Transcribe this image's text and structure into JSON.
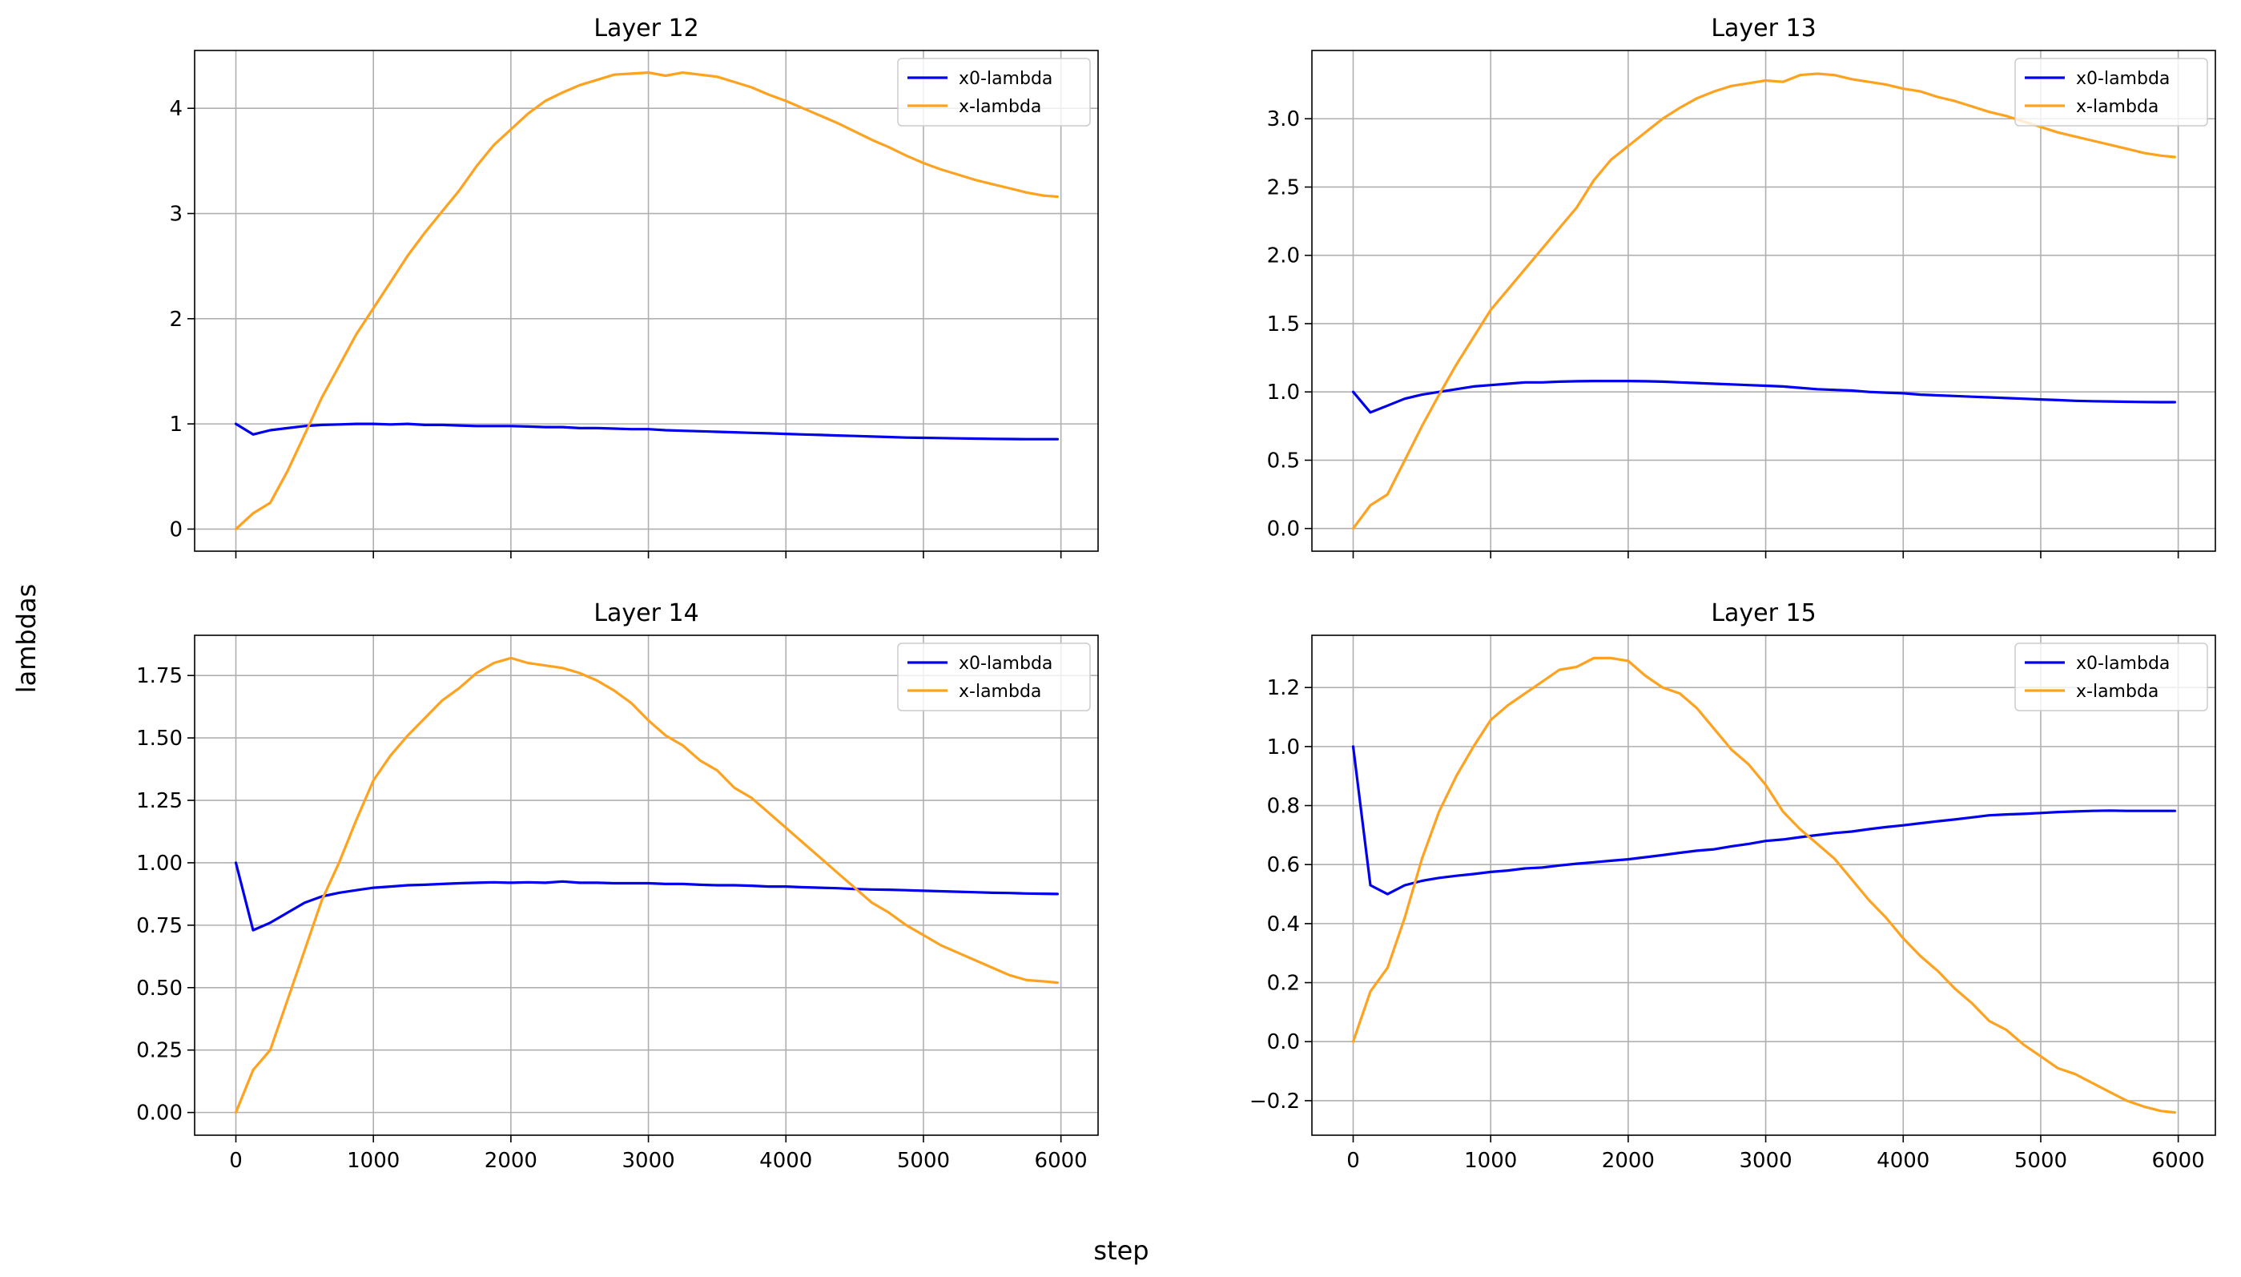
{
  "figure": {
    "xlabel": "step",
    "ylabel": "lambdas"
  },
  "colors": {
    "x0_lambda": "#0000ee",
    "x_lambda": "#ffa21f"
  },
  "chart_data": [
    {
      "type": "line",
      "title": "Layer 12",
      "xlabel": "",
      "ylabel": "",
      "xlim": [
        -300,
        6270
      ],
      "ylim": [
        -0.21,
        4.55
      ],
      "xticks": [
        0,
        1000,
        2000,
        3000,
        4000,
        5000,
        6000
      ],
      "yticks": [
        0,
        1,
        2,
        3,
        4
      ],
      "yticklabels": [
        "0",
        "1",
        "2",
        "3",
        "4"
      ],
      "show_xticklabels": false,
      "grid": true,
      "legend": "top-right",
      "series": [
        {
          "name": "x0-lambda",
          "color": "#0000ee",
          "x": [
            0,
            125,
            250,
            375,
            500,
            625,
            750,
            875,
            1000,
            1125,
            1250,
            1375,
            1500,
            1625,
            1750,
            1875,
            2000,
            2125,
            2250,
            2375,
            2500,
            2625,
            2750,
            2875,
            3000,
            3125,
            3250,
            3375,
            3500,
            3625,
            3750,
            3875,
            4000,
            4125,
            4250,
            4375,
            4500,
            4625,
            4750,
            4875,
            5000,
            5125,
            5250,
            5375,
            5500,
            5625,
            5750,
            5875,
            5975
          ],
          "y": [
            1.0,
            0.9,
            0.94,
            0.96,
            0.98,
            0.99,
            0.995,
            1.0,
            1.0,
            0.995,
            1.0,
            0.99,
            0.99,
            0.985,
            0.98,
            0.98,
            0.98,
            0.975,
            0.97,
            0.97,
            0.96,
            0.96,
            0.955,
            0.95,
            0.95,
            0.94,
            0.935,
            0.93,
            0.925,
            0.92,
            0.915,
            0.91,
            0.905,
            0.9,
            0.895,
            0.89,
            0.885,
            0.88,
            0.875,
            0.87,
            0.868,
            0.865,
            0.862,
            0.86,
            0.858,
            0.856,
            0.855,
            0.855,
            0.855
          ]
        },
        {
          "name": "x-lambda",
          "color": "#ffa21f",
          "x": [
            0,
            125,
            250,
            375,
            500,
            625,
            750,
            875,
            1000,
            1125,
            1250,
            1375,
            1500,
            1625,
            1750,
            1875,
            2000,
            2125,
            2250,
            2375,
            2500,
            2625,
            2750,
            2875,
            3000,
            3125,
            3250,
            3375,
            3500,
            3625,
            3750,
            3875,
            4000,
            4125,
            4250,
            4375,
            4500,
            4625,
            4750,
            4875,
            5000,
            5125,
            5250,
            5375,
            5500,
            5625,
            5750,
            5875,
            5975
          ],
          "y": [
            0.0,
            0.15,
            0.25,
            0.55,
            0.9,
            1.25,
            1.55,
            1.85,
            2.1,
            2.35,
            2.6,
            2.82,
            3.02,
            3.22,
            3.45,
            3.65,
            3.8,
            3.95,
            4.07,
            4.15,
            4.22,
            4.27,
            4.32,
            4.33,
            4.34,
            4.31,
            4.34,
            4.32,
            4.3,
            4.25,
            4.2,
            4.13,
            4.07,
            4.0,
            3.93,
            3.86,
            3.78,
            3.7,
            3.63,
            3.55,
            3.48,
            3.42,
            3.37,
            3.32,
            3.28,
            3.24,
            3.2,
            3.17,
            3.16
          ]
        }
      ]
    },
    {
      "type": "line",
      "title": "Layer 13",
      "xlabel": "",
      "ylabel": "",
      "xlim": [
        -300,
        6270
      ],
      "ylim": [
        -0.166,
        3.5
      ],
      "xticks": [
        0,
        1000,
        2000,
        3000,
        4000,
        5000,
        6000
      ],
      "yticks": [
        0.0,
        0.5,
        1.0,
        1.5,
        2.0,
        2.5,
        3.0
      ],
      "yticklabels": [
        "0.0",
        "0.5",
        "1.0",
        "1.5",
        "2.0",
        "2.5",
        "3.0"
      ],
      "show_xticklabels": false,
      "grid": true,
      "legend": "top-right",
      "series": [
        {
          "name": "x0-lambda",
          "color": "#0000ee",
          "x": [
            0,
            125,
            250,
            375,
            500,
            625,
            750,
            875,
            1000,
            1125,
            1250,
            1375,
            1500,
            1625,
            1750,
            1875,
            2000,
            2125,
            2250,
            2375,
            2500,
            2625,
            2750,
            2875,
            3000,
            3125,
            3250,
            3375,
            3500,
            3625,
            3750,
            3875,
            4000,
            4125,
            4250,
            4375,
            4500,
            4625,
            4750,
            4875,
            5000,
            5125,
            5250,
            5375,
            5500,
            5625,
            5750,
            5875,
            5975
          ],
          "y": [
            1.0,
            0.85,
            0.9,
            0.95,
            0.98,
            1.0,
            1.02,
            1.04,
            1.05,
            1.06,
            1.07,
            1.07,
            1.075,
            1.078,
            1.08,
            1.08,
            1.08,
            1.078,
            1.075,
            1.07,
            1.065,
            1.06,
            1.055,
            1.05,
            1.045,
            1.04,
            1.03,
            1.02,
            1.015,
            1.01,
            1.0,
            0.995,
            0.99,
            0.98,
            0.975,
            0.97,
            0.965,
            0.96,
            0.955,
            0.95,
            0.945,
            0.94,
            0.935,
            0.932,
            0.93,
            0.928,
            0.926,
            0.925,
            0.925
          ]
        },
        {
          "name": "x-lambda",
          "color": "#ffa21f",
          "x": [
            0,
            125,
            250,
            375,
            500,
            625,
            750,
            875,
            1000,
            1125,
            1250,
            1375,
            1500,
            1625,
            1750,
            1875,
            2000,
            2125,
            2250,
            2375,
            2500,
            2625,
            2750,
            2875,
            3000,
            3125,
            3250,
            3375,
            3500,
            3625,
            3750,
            3875,
            4000,
            4125,
            4250,
            4375,
            4500,
            4625,
            4750,
            4875,
            5000,
            5125,
            5250,
            5375,
            5500,
            5625,
            5750,
            5875,
            5975
          ],
          "y": [
            0.0,
            0.17,
            0.25,
            0.5,
            0.75,
            0.98,
            1.2,
            1.4,
            1.6,
            1.75,
            1.9,
            2.05,
            2.2,
            2.35,
            2.55,
            2.7,
            2.8,
            2.9,
            3.0,
            3.08,
            3.15,
            3.2,
            3.24,
            3.26,
            3.28,
            3.27,
            3.32,
            3.33,
            3.32,
            3.29,
            3.27,
            3.25,
            3.22,
            3.2,
            3.16,
            3.13,
            3.09,
            3.05,
            3.02,
            2.98,
            2.94,
            2.9,
            2.87,
            2.84,
            2.81,
            2.78,
            2.75,
            2.73,
            2.72
          ]
        }
      ]
    },
    {
      "type": "line",
      "title": "Layer 14",
      "xlabel": "",
      "ylabel": "",
      "xlim": [
        -300,
        6270
      ],
      "ylim": [
        -0.091,
        1.911
      ],
      "xticks": [
        0,
        1000,
        2000,
        3000,
        4000,
        5000,
        6000
      ],
      "xticklabels": [
        "0",
        "1000",
        "2000",
        "3000",
        "4000",
        "5000",
        "6000"
      ],
      "yticks": [
        0.0,
        0.25,
        0.5,
        0.75,
        1.0,
        1.25,
        1.5,
        1.75
      ],
      "yticklabels": [
        "0.00",
        "0.25",
        "0.50",
        "0.75",
        "1.00",
        "1.25",
        "1.50",
        "1.75"
      ],
      "show_xticklabels": true,
      "grid": true,
      "legend": "top-right",
      "series": [
        {
          "name": "x0-lambda",
          "color": "#0000ee",
          "x": [
            0,
            125,
            250,
            375,
            500,
            625,
            750,
            875,
            1000,
            1125,
            1250,
            1375,
            1500,
            1625,
            1750,
            1875,
            2000,
            2125,
            2250,
            2375,
            2500,
            2625,
            2750,
            2875,
            3000,
            3125,
            3250,
            3375,
            3500,
            3625,
            3750,
            3875,
            4000,
            4125,
            4250,
            4375,
            4500,
            4625,
            4750,
            4875,
            5000,
            5125,
            5250,
            5375,
            5500,
            5625,
            5750,
            5875,
            5975
          ],
          "y": [
            1.0,
            0.73,
            0.76,
            0.8,
            0.84,
            0.865,
            0.88,
            0.89,
            0.9,
            0.905,
            0.91,
            0.912,
            0.915,
            0.918,
            0.92,
            0.922,
            0.92,
            0.922,
            0.92,
            0.925,
            0.92,
            0.92,
            0.918,
            0.918,
            0.918,
            0.915,
            0.915,
            0.912,
            0.91,
            0.91,
            0.908,
            0.905,
            0.905,
            0.902,
            0.9,
            0.898,
            0.895,
            0.893,
            0.892,
            0.89,
            0.888,
            0.886,
            0.884,
            0.882,
            0.88,
            0.879,
            0.877,
            0.876,
            0.875
          ]
        },
        {
          "name": "x-lambda",
          "color": "#ffa21f",
          "x": [
            0,
            125,
            250,
            375,
            500,
            625,
            750,
            875,
            1000,
            1125,
            1250,
            1375,
            1500,
            1625,
            1750,
            1875,
            2000,
            2125,
            2250,
            2375,
            2500,
            2625,
            2750,
            2875,
            3000,
            3125,
            3250,
            3375,
            3500,
            3625,
            3750,
            3875,
            4000,
            4125,
            4250,
            4375,
            4500,
            4625,
            4750,
            4875,
            5000,
            5125,
            5250,
            5375,
            5500,
            5625,
            5750,
            5875,
            5975
          ],
          "y": [
            0.0,
            0.17,
            0.25,
            0.45,
            0.65,
            0.85,
            1.0,
            1.17,
            1.33,
            1.43,
            1.51,
            1.58,
            1.65,
            1.7,
            1.76,
            1.8,
            1.82,
            1.8,
            1.79,
            1.78,
            1.76,
            1.73,
            1.69,
            1.64,
            1.57,
            1.51,
            1.47,
            1.41,
            1.37,
            1.3,
            1.26,
            1.2,
            1.14,
            1.08,
            1.02,
            0.96,
            0.9,
            0.84,
            0.8,
            0.75,
            0.71,
            0.67,
            0.64,
            0.61,
            0.58,
            0.55,
            0.53,
            0.525,
            0.52
          ]
        }
      ]
    },
    {
      "type": "line",
      "title": "Layer 15",
      "xlabel": "",
      "ylabel": "",
      "xlim": [
        -300,
        6270
      ],
      "ylim": [
        -0.317,
        1.377
      ],
      "xticks": [
        0,
        1000,
        2000,
        3000,
        4000,
        5000,
        6000
      ],
      "xticklabels": [
        "0",
        "1000",
        "2000",
        "3000",
        "4000",
        "5000",
        "6000"
      ],
      "yticks": [
        -0.2,
        0.0,
        0.2,
        0.4,
        0.6,
        0.8,
        1.0,
        1.2
      ],
      "yticklabels": [
        "−0.2",
        "0.0",
        "0.2",
        "0.4",
        "0.6",
        "0.8",
        "1.0",
        "1.2"
      ],
      "show_xticklabels": true,
      "grid": true,
      "legend": "top-right",
      "series": [
        {
          "name": "x0-lambda",
          "color": "#0000ee",
          "x": [
            0,
            125,
            250,
            375,
            500,
            625,
            750,
            875,
            1000,
            1125,
            1250,
            1375,
            1500,
            1625,
            1750,
            1875,
            2000,
            2125,
            2250,
            2375,
            2500,
            2625,
            2750,
            2875,
            3000,
            3125,
            3250,
            3375,
            3500,
            3625,
            3750,
            3875,
            4000,
            4125,
            4250,
            4375,
            4500,
            4625,
            4750,
            4875,
            5000,
            5125,
            5250,
            5375,
            5500,
            5625,
            5750,
            5875,
            5975
          ],
          "y": [
            1.0,
            0.53,
            0.5,
            0.53,
            0.545,
            0.555,
            0.562,
            0.568,
            0.575,
            0.58,
            0.587,
            0.59,
            0.597,
            0.603,
            0.608,
            0.613,
            0.618,
            0.625,
            0.632,
            0.64,
            0.647,
            0.652,
            0.662,
            0.67,
            0.68,
            0.685,
            0.693,
            0.7,
            0.707,
            0.712,
            0.72,
            0.727,
            0.733,
            0.74,
            0.747,
            0.753,
            0.76,
            0.767,
            0.77,
            0.772,
            0.775,
            0.778,
            0.78,
            0.782,
            0.783,
            0.782,
            0.782,
            0.782,
            0.782
          ]
        },
        {
          "name": "x-lambda",
          "color": "#ffa21f",
          "x": [
            0,
            125,
            250,
            375,
            500,
            625,
            750,
            875,
            1000,
            1125,
            1250,
            1375,
            1500,
            1625,
            1750,
            1875,
            2000,
            2125,
            2250,
            2375,
            2500,
            2625,
            2750,
            2875,
            3000,
            3125,
            3250,
            3375,
            3500,
            3625,
            3750,
            3875,
            4000,
            4125,
            4250,
            4375,
            4500,
            4625,
            4750,
            4875,
            5000,
            5125,
            5250,
            5375,
            5500,
            5625,
            5750,
            5875,
            5975
          ],
          "y": [
            0.0,
            0.17,
            0.25,
            0.42,
            0.62,
            0.78,
            0.9,
            1.0,
            1.09,
            1.14,
            1.18,
            1.22,
            1.26,
            1.27,
            1.3,
            1.3,
            1.29,
            1.24,
            1.2,
            1.18,
            1.13,
            1.06,
            0.99,
            0.94,
            0.87,
            0.78,
            0.72,
            0.67,
            0.62,
            0.55,
            0.48,
            0.42,
            0.35,
            0.29,
            0.24,
            0.18,
            0.13,
            0.07,
            0.04,
            -0.01,
            -0.05,
            -0.09,
            -0.11,
            -0.14,
            -0.17,
            -0.2,
            -0.22,
            -0.235,
            -0.24
          ]
        }
      ]
    }
  ]
}
